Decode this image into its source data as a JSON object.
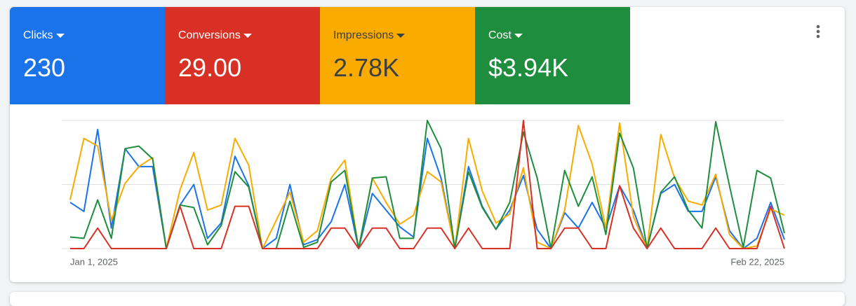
{
  "metrics": [
    {
      "total": "230"
    },
    {
      "total": "29.00"
    },
    {
      "total": "2.78K"
    },
    {
      "total": "$3.94K"
    }
  ],
  "chart_data": {
    "type": "line",
    "categories": [
      "Jan 1, 2025",
      null,
      null,
      null,
      null,
      null,
      null,
      null,
      null,
      null,
      null,
      null,
      null,
      null,
      null,
      null,
      null,
      null,
      null,
      null,
      null,
      null,
      null,
      null,
      null,
      null,
      null,
      null,
      null,
      null,
      null,
      null,
      null,
      null,
      null,
      null,
      null,
      null,
      null,
      null,
      null,
      null,
      null,
      null,
      null,
      null,
      null,
      null,
      null,
      null,
      null,
      null,
      "Feb 22, 2025"
    ],
    "ylim": [
      0,
      100
    ],
    "series": [
      {
        "name": "Clicks",
        "color": "#1a73e8",
        "values": [
          36,
          29,
          93,
          16,
          78,
          64,
          64,
          0,
          34,
          50,
          8,
          20,
          72,
          49,
          0,
          8,
          50,
          3,
          7,
          21,
          50,
          0,
          43,
          30,
          17,
          9,
          86,
          55,
          0,
          64,
          33,
          15,
          30,
          57,
          15,
          0,
          28,
          16,
          36,
          16,
          49,
          30,
          0,
          43,
          50,
          29,
          29,
          56,
          14,
          0,
          8,
          36,
          7
        ]
      },
      {
        "name": "Conversions",
        "color": "#d93025",
        "values": [
          0,
          0,
          16,
          0,
          0,
          0,
          0,
          0,
          33,
          0,
          0,
          0,
          33,
          33,
          0,
          0,
          0,
          0,
          0,
          16,
          16,
          0,
          16,
          16,
          0,
          0,
          16,
          16,
          0,
          16,
          0,
          0,
          0,
          100,
          0,
          0,
          16,
          16,
          0,
          0,
          49,
          16,
          0,
          16,
          0,
          0,
          0,
          16,
          0,
          0,
          0,
          33,
          0
        ]
      },
      {
        "name": "Impressions",
        "color": "#f9ab00",
        "values": [
          38,
          86,
          80,
          22,
          51,
          64,
          71,
          0,
          46,
          75,
          30,
          34,
          86,
          65,
          0,
          22,
          44,
          5,
          14,
          55,
          69,
          0,
          55,
          36,
          19,
          26,
          60,
          52,
          0,
          86,
          45,
          20,
          27,
          63,
          5,
          0,
          30,
          96,
          66,
          16,
          98,
          25,
          0,
          89,
          55,
          37,
          34,
          58,
          11,
          0,
          2,
          31,
          26
        ]
      },
      {
        "name": "Cost",
        "color": "#1e8e3e",
        "values": [
          9,
          8,
          38,
          8,
          78,
          80,
          70,
          0,
          34,
          32,
          3,
          18,
          60,
          48,
          0,
          0,
          37,
          1,
          5,
          52,
          61,
          0,
          55,
          56,
          8,
          8,
          100,
          78,
          0,
          60,
          32,
          15,
          36,
          91,
          55,
          0,
          61,
          33,
          56,
          11,
          90,
          63,
          0,
          44,
          56,
          30,
          16,
          99,
          49,
          1,
          61,
          55,
          12
        ]
      }
    ]
  }
}
